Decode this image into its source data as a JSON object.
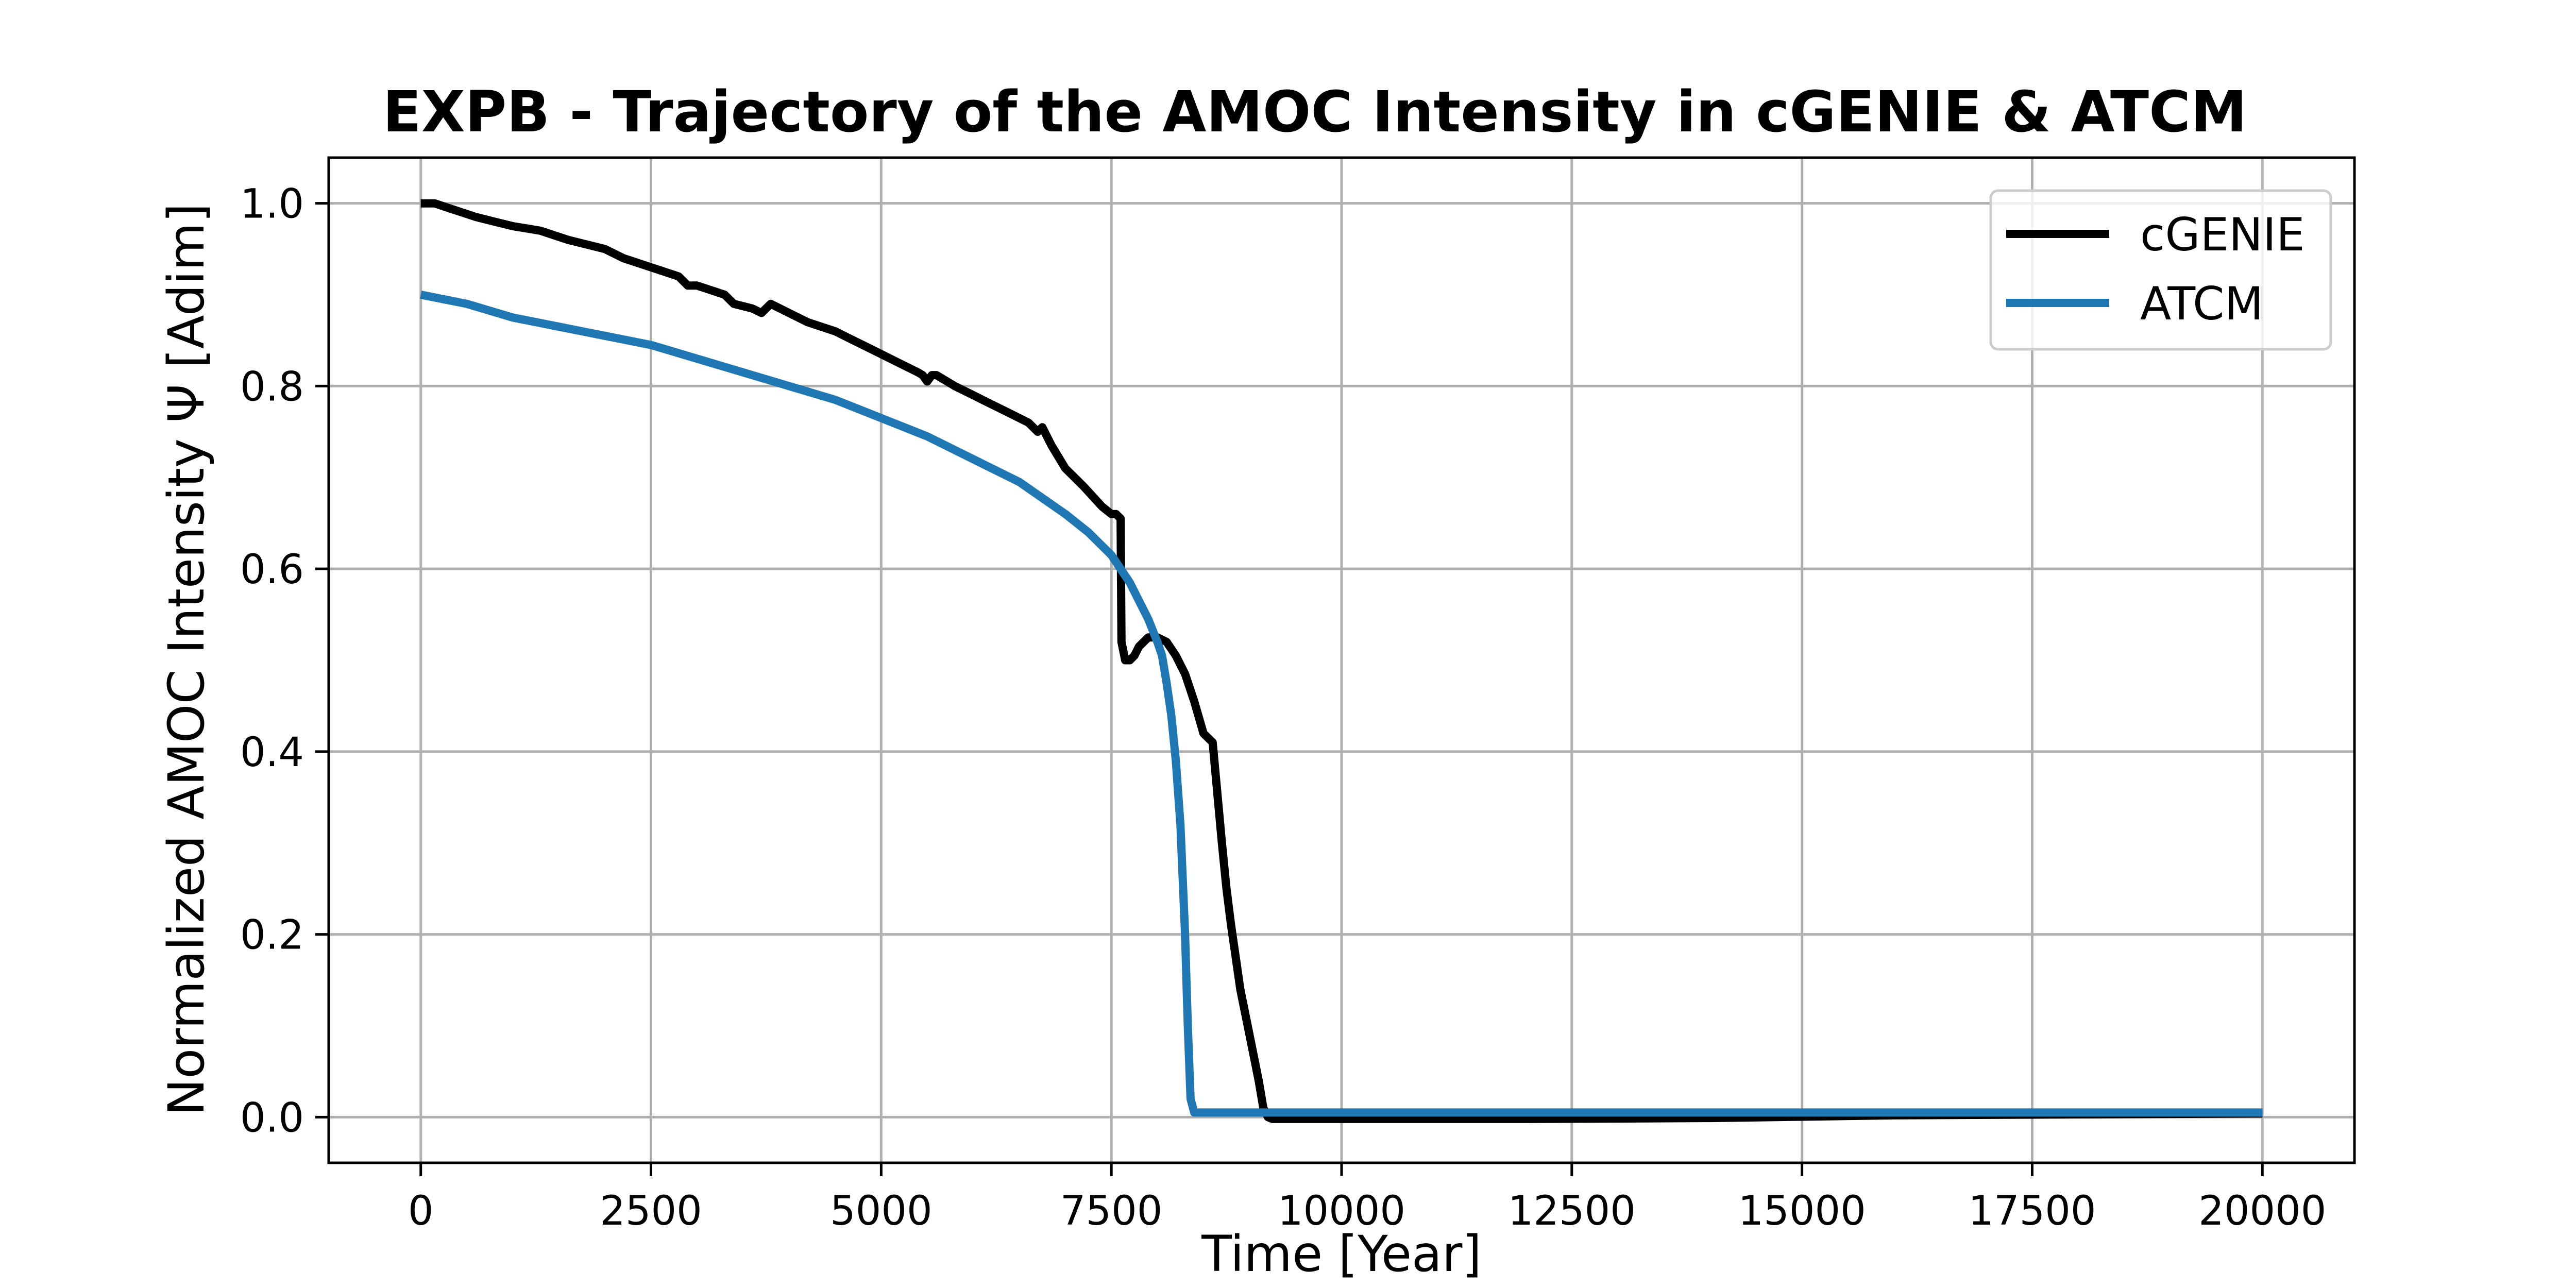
{
  "chart_data": {
    "type": "line",
    "title": "EXPB - Trajectory of the AMOC Intensity in cGENIE & ATCM",
    "xlabel": "Time [Year]",
    "ylabel": "Normalized AMOC Intensity Ψ [Adim]",
    "xlim": [
      -1000,
      21000
    ],
    "ylim": [
      -0.05,
      1.05
    ],
    "xticks": [
      0,
      2500,
      5000,
      7500,
      10000,
      12500,
      15000,
      17500,
      20000
    ],
    "xtick_labels": [
      "0",
      "2500",
      "5000",
      "7500",
      "10000",
      "12500",
      "15000",
      "17500",
      "20000"
    ],
    "yticks": [
      0.0,
      0.2,
      0.4,
      0.6,
      0.8,
      1.0
    ],
    "ytick_labels": [
      "0.0",
      "0.2",
      "0.4",
      "0.6",
      "0.8",
      "1.0"
    ],
    "grid": true,
    "legend_position": "top-right",
    "series": [
      {
        "name": "cGENIE",
        "color": "#000000",
        "x": [
          0,
          150,
          300,
          600,
          800,
          1000,
          1300,
          1600,
          2000,
          2200,
          2500,
          2800,
          2900,
          3000,
          3300,
          3400,
          3600,
          3700,
          3800,
          4000,
          4200,
          4500,
          4800,
          5000,
          5200,
          5400,
          5450,
          5500,
          5550,
          5600,
          5800,
          6000,
          6200,
          6400,
          6600,
          6700,
          6750,
          6850,
          7000,
          7200,
          7400,
          7500,
          7550,
          7600,
          7610,
          7650,
          7700,
          7750,
          7800,
          7900,
          8000,
          8100,
          8200,
          8300,
          8400,
          8500,
          8600,
          8700,
          8750,
          8800,
          8850,
          8900,
          9000,
          9100,
          9150,
          9200,
          9250,
          9300,
          9400,
          10000,
          12000,
          14000,
          16000,
          18000,
          20000
        ],
        "y": [
          1.0,
          1.0,
          0.995,
          0.985,
          0.98,
          0.975,
          0.97,
          0.96,
          0.95,
          0.94,
          0.93,
          0.92,
          0.91,
          0.91,
          0.9,
          0.89,
          0.885,
          0.88,
          0.89,
          0.88,
          0.87,
          0.86,
          0.845,
          0.835,
          0.825,
          0.815,
          0.812,
          0.805,
          0.812,
          0.812,
          0.8,
          0.79,
          0.78,
          0.77,
          0.76,
          0.75,
          0.755,
          0.735,
          0.71,
          0.69,
          0.668,
          0.66,
          0.66,
          0.655,
          0.52,
          0.5,
          0.5,
          0.505,
          0.515,
          0.525,
          0.525,
          0.52,
          0.505,
          0.485,
          0.455,
          0.42,
          0.41,
          0.3,
          0.25,
          0.21,
          0.175,
          0.14,
          0.09,
          0.04,
          0.01,
          0.0,
          -0.002,
          -0.002,
          -0.002,
          -0.002,
          -0.002,
          -0.001,
          0.002,
          0.003,
          0.004
        ]
      },
      {
        "name": "ATCM",
        "color": "#1f77b4",
        "x": [
          0,
          500,
          1000,
          1500,
          2000,
          2500,
          3000,
          3500,
          4000,
          4500,
          5000,
          5500,
          6000,
          6500,
          7000,
          7250,
          7500,
          7600,
          7700,
          7800,
          7900,
          8000,
          8050,
          8100,
          8150,
          8200,
          8250,
          8300,
          8330,
          8360,
          8400,
          9000,
          12000,
          16000,
          20000
        ],
        "y": [
          0.9,
          0.89,
          0.875,
          0.865,
          0.855,
          0.845,
          0.83,
          0.815,
          0.8,
          0.785,
          0.765,
          0.745,
          0.72,
          0.695,
          0.66,
          0.64,
          0.615,
          0.6,
          0.585,
          0.565,
          0.545,
          0.52,
          0.505,
          0.475,
          0.44,
          0.39,
          0.32,
          0.2,
          0.1,
          0.02,
          0.005,
          0.005,
          0.005,
          0.005,
          0.005
        ]
      }
    ]
  }
}
